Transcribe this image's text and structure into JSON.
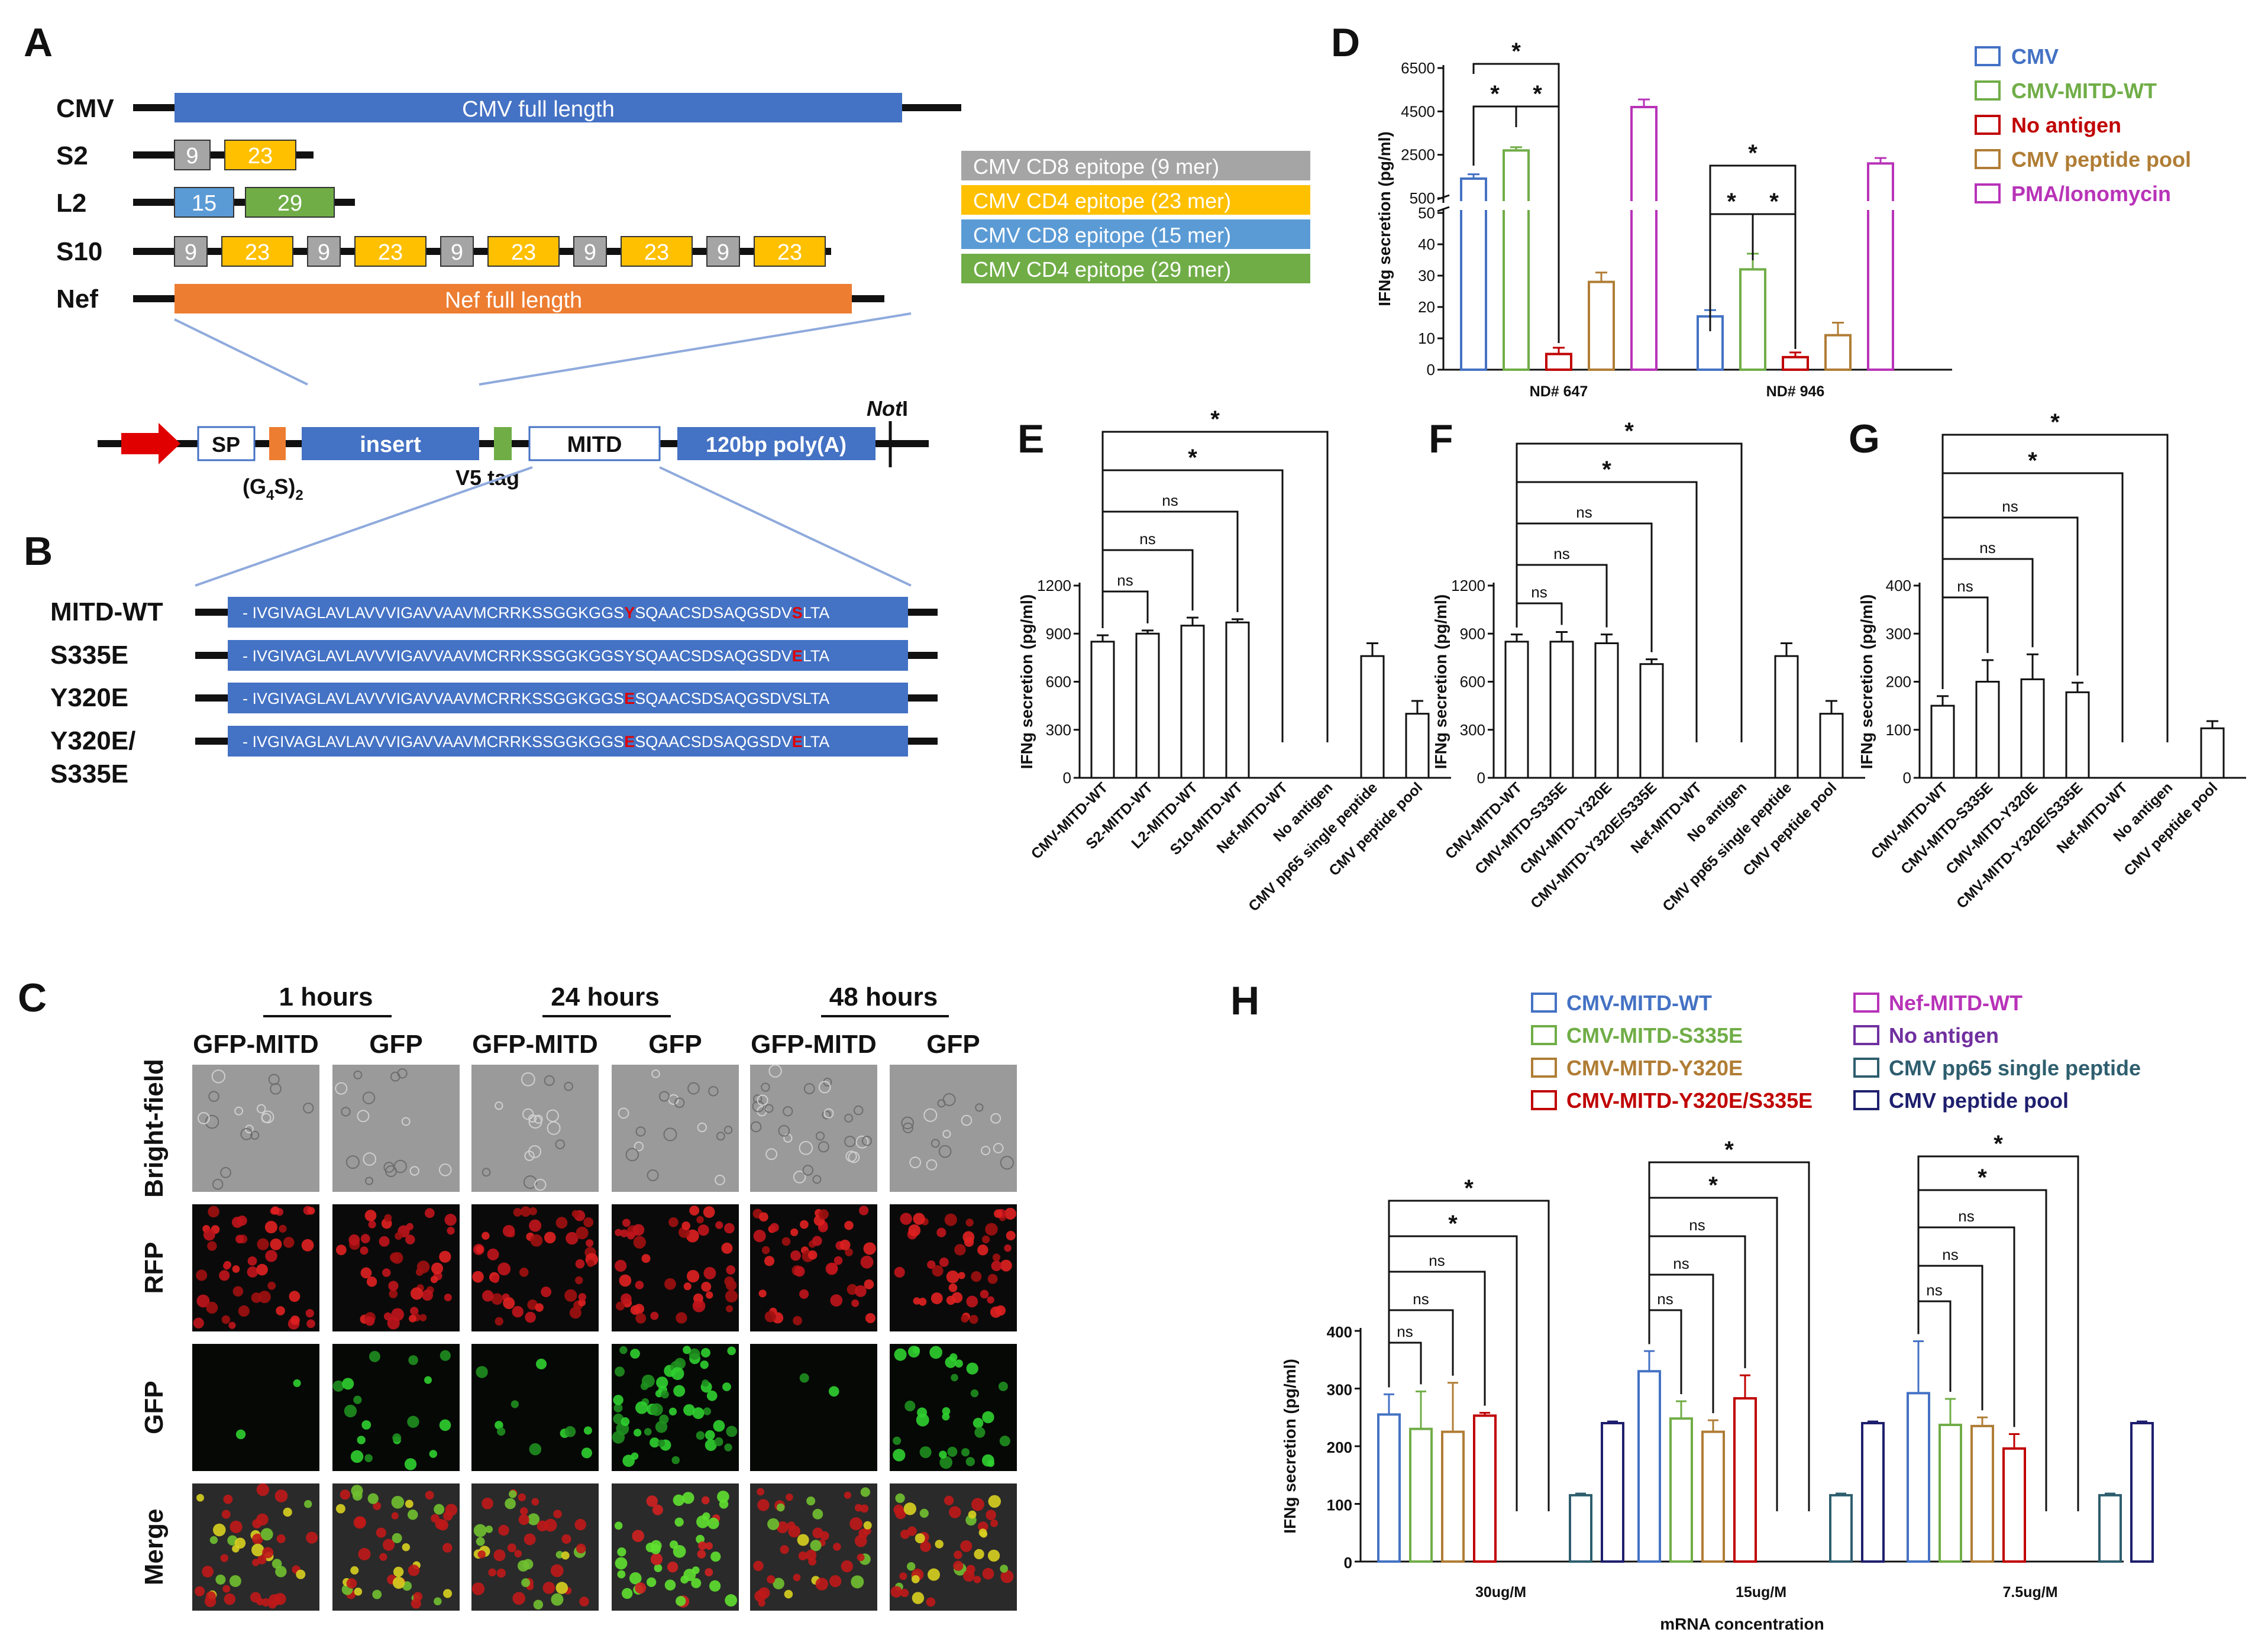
{
  "panels": {
    "A": "A",
    "B": "B",
    "C": "C",
    "D": "D",
    "E": "E",
    "F": "F",
    "G": "G",
    "H": "H"
  },
  "colors": {
    "blue": "#4472c4",
    "orange": "#ed7d31",
    "gray": "#a5a5a5",
    "yellow": "#ffc000",
    "lightblue": "#5b9bd5",
    "green": "#70ad47",
    "cmv": "#4472c4",
    "mitd_wt": "#70ad47",
    "no_antigen": "#c00000",
    "peptide_pool": "#b07d35",
    "pma": "#b833b8",
    "h_wt": "#4472c4",
    "h_s335e": "#70ad47",
    "h_y320e": "#b07d35",
    "h_dbl": "#c00000",
    "h_nef": "#b833b8",
    "h_noag": "#7030a0",
    "h_single": "#2e5e6e",
    "h_pool": "#1f1f6e"
  },
  "panel_a": {
    "rows": [
      {
        "name": "CMV",
        "segments": [
          "CMV full length"
        ]
      },
      {
        "name": "S2",
        "segments": [
          "9",
          "23"
        ]
      },
      {
        "name": "L2",
        "segments": [
          "15",
          "29"
        ]
      },
      {
        "name": "S10",
        "segments": [
          "9",
          "23",
          "9",
          "23",
          "9",
          "23",
          "9",
          "23",
          "9",
          "23"
        ]
      },
      {
        "name": "Nef",
        "segments": [
          "Nef full length"
        ]
      }
    ],
    "epitope_legend": [
      {
        "label": "CMV CD8 epitope (9 mer)",
        "color": "#a5a5a5"
      },
      {
        "label": "CMV CD4 epitope (23 mer)",
        "color": "#ffc000"
      },
      {
        "label": "CMV CD8 epitope (15 mer)",
        "color": "#5b9bd5"
      },
      {
        "label": "CMV CD4 epitope (29 mer)",
        "color": "#70ad47"
      }
    ],
    "construct": {
      "sp": "SP",
      "linker": "(G",
      "linker_sub": "4",
      "linker_mid": "S)",
      "linker_sub2": "2",
      "insert": "insert",
      "v5": "V5 tag",
      "mitd": "MITD",
      "polya": "120bp poly(A)",
      "noti_italic": "Not",
      "noti_rest": "I"
    }
  },
  "panel_b": {
    "rows": [
      {
        "name": "MITD-WT",
        "pre": "- IVGIVAGLAVLAVVVIGAVVAAVMCRRKSSGGKGGS",
        "m1": "Y",
        "mid": "SQAACSDSAQGSDV",
        "m2": "S",
        "post": "LTA"
      },
      {
        "name": "S335E",
        "pre": "- IVGIVAGLAVLAVVVIGAVVAAVMCRRKSSGGKGGSYSQAACSDSAQGSDV",
        "m1": "",
        "mid": "",
        "m2": "E",
        "post": "LTA"
      },
      {
        "name": "Y320E",
        "pre": "- IVGIVAGLAVLAVVVIGAVVAAVMCRRKSSGGKGGS",
        "m1": "E",
        "mid": "SQAACSDSAQGSDVSLTA",
        "m2": "",
        "post": ""
      },
      {
        "name": "Y320E/",
        "name2": "S335E",
        "pre": "- IVGIVAGLAVLAVVVIGAVVAAVMCRRKSSGGKGGS",
        "m1": "E",
        "mid": "SQAACSDSAQGSDV",
        "m2": "E",
        "post": "LTA"
      }
    ]
  },
  "panel_c": {
    "timepoints": [
      "1 hours",
      "24 hours",
      "48 hours"
    ],
    "columns": [
      "GFP-MITD",
      "GFP",
      "GFP-MITD",
      "GFP",
      "GFP-MITD",
      "GFP"
    ],
    "rows": [
      "Bright-field",
      "RFP",
      "GFP",
      "Merge"
    ]
  },
  "chart_data": [
    {
      "id": "D",
      "type": "bar",
      "title": "",
      "ylabel": "IFNg secretion (pg/ml)",
      "y_ticks_upper": [
        "6500",
        "4500",
        "2500",
        "500"
      ],
      "y_ticks_lower": [
        "50",
        "40",
        "30",
        "20",
        "10",
        "0"
      ],
      "groups": [
        "ND# 647",
        "ND# 946"
      ],
      "series": [
        {
          "name": "CMV",
          "values": [
            1400,
            17
          ],
          "errors": [
            200,
            2
          ]
        },
        {
          "name": "CMV-MITD-WT",
          "values": [
            2700,
            32
          ],
          "errors": [
            150,
            5
          ]
        },
        {
          "name": "No antigen",
          "values": [
            5,
            4
          ],
          "errors": [
            2,
            1.5
          ]
        },
        {
          "name": "CMV peptide pool",
          "values": [
            28,
            11
          ],
          "errors": [
            3,
            4
          ]
        },
        {
          "name": "PMA/Ionomycin",
          "values": [
            4700,
            2100
          ],
          "errors": [
            350,
            250
          ]
        }
      ],
      "significance": [
        "*",
        "*",
        "*",
        "*",
        "*",
        "*"
      ]
    },
    {
      "id": "E",
      "type": "bar",
      "ylabel": "IFNg secretion (pg/ml)",
      "ylim": [
        0,
        1200
      ],
      "y_ticks": [
        "0",
        "300",
        "600",
        "900",
        "1200"
      ],
      "categories": [
        "CMV-MITD-WT",
        "S2-MITD-WT",
        "L2-MITD-WT",
        "S10-MITD-WT",
        "Nef-MITD-WT",
        "No antigen",
        "CMV pp65 single peptide",
        "CMV peptide pool"
      ],
      "values": [
        850,
        900,
        950,
        970,
        0,
        0,
        760,
        400
      ],
      "errors": [
        40,
        20,
        50,
        20,
        0,
        0,
        80,
        80
      ],
      "significance": [
        "ns",
        "ns",
        "ns",
        "*",
        "*"
      ]
    },
    {
      "id": "F",
      "type": "bar",
      "ylabel": "IFNg secretion (pg/ml)",
      "ylim": [
        0,
        1200
      ],
      "y_ticks": [
        "0",
        "300",
        "600",
        "900",
        "1200"
      ],
      "categories": [
        "CMV-MITD-WT",
        "CMV-MITD-S335E",
        "CMV-MITD-Y320E",
        "CMV-MITD-Y320E/S335E",
        "Nef-MITD-WT",
        "No antigen",
        "CMV pp65 single peptide",
        "CMV peptide pool"
      ],
      "values": [
        850,
        850,
        840,
        710,
        0,
        0,
        760,
        400
      ],
      "errors": [
        45,
        60,
        55,
        30,
        0,
        0,
        80,
        80
      ],
      "significance": [
        "ns",
        "ns",
        "ns",
        "*",
        "*"
      ]
    },
    {
      "id": "G",
      "type": "bar",
      "ylabel": "IFNg secretion (pg/ml)",
      "ylim": [
        0,
        400
      ],
      "y_ticks": [
        "0",
        "100",
        "200",
        "300",
        "400"
      ],
      "categories": [
        "CMV-MITD-WT",
        "CMV-MITD-S335E",
        "CMV-MITD-Y320E",
        "CMV-MITD-Y320E/S335E",
        "Nef-MITD-WT",
        "No antigen",
        "CMV peptide pool"
      ],
      "values": [
        150,
        200,
        205,
        178,
        0,
        0,
        103
      ],
      "errors": [
        20,
        45,
        52,
        20,
        0,
        0,
        15
      ],
      "significance": [
        "ns",
        "ns",
        "ns",
        "*",
        "*"
      ]
    },
    {
      "id": "H",
      "type": "bar",
      "ylabel": "IFNg secretion (pg/ml)",
      "xlabel": "mRNA concentration",
      "ylim": [
        0,
        400
      ],
      "y_ticks": [
        "0",
        "100",
        "200",
        "300",
        "400"
      ],
      "groups": [
        "30ug/M",
        "15ug/M",
        "7.5ug/M"
      ],
      "series": [
        {
          "name": "CMV-MITD-WT",
          "values": [
            255,
            330,
            292
          ],
          "errors": [
            35,
            35,
            90
          ]
        },
        {
          "name": "CMV-MITD-S335E",
          "values": [
            230,
            248,
            237
          ],
          "errors": [
            65,
            30,
            45
          ]
        },
        {
          "name": "CMV-MITD-Y320E",
          "values": [
            225,
            225,
            235
          ],
          "errors": [
            85,
            20,
            15
          ]
        },
        {
          "name": "CMV-MITD-Y320E/S335E",
          "values": [
            253,
            283,
            196
          ],
          "errors": [
            5,
            40,
            25
          ]
        },
        {
          "name": "Nef-MITD-WT",
          "values": [
            0,
            0,
            0
          ],
          "errors": [
            0,
            0,
            0
          ]
        },
        {
          "name": "No antigen",
          "values": [
            0,
            0,
            0
          ],
          "errors": [
            0,
            0,
            0
          ]
        },
        {
          "name": "CMV pp65 single peptide",
          "values": [
            115,
            115,
            115
          ],
          "errors": [
            3,
            3,
            3
          ]
        },
        {
          "name": "CMV peptide pool",
          "values": [
            240,
            240,
            240
          ],
          "errors": [
            3,
            3,
            3
          ]
        }
      ],
      "significance": [
        "ns",
        "ns",
        "ns",
        "*",
        "*"
      ]
    }
  ]
}
